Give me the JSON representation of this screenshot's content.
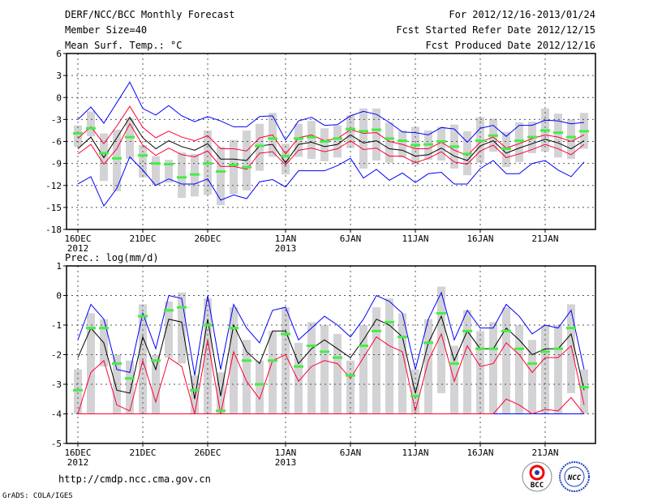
{
  "header": {
    "title": "DERF/NCC/BCC Monthly Forecast",
    "member_size": "Member Size=40",
    "period": "For 2012/12/16-2013/01/24",
    "fcst_started": "Fcst Started Refer Date 2012/12/15",
    "fcst_produced": "Fcst Produced Date 2012/12/16"
  },
  "footer": {
    "url": "http://cmdp.ncc.cma.gov.cn",
    "credit": "GrADS: COLA/IGES",
    "logo_bcc": "BCC",
    "logo_ncc": "NCC"
  },
  "colors": {
    "mean": "#000000",
    "red": "#ff0033",
    "blue": "#0000ff",
    "green": "#44ee44",
    "box": "#d3d3d6"
  },
  "chart_data": [
    {
      "type": "line",
      "title": "Mean Surf. Temp.: °C",
      "ylim": [
        -18,
        6
      ],
      "yticks": [
        "6",
        "3",
        "0",
        "-3",
        "-6",
        "-9",
        "-12",
        "-15",
        "-18"
      ],
      "ytick_values": [
        6,
        3,
        0,
        -3,
        -6,
        -9,
        -12,
        -15,
        -18
      ],
      "xtick_labels": [
        "16DEC",
        "21DEC",
        "26DEC",
        "1JAN",
        "6JAN",
        "11JAN",
        "16JAN",
        "21JAN"
      ],
      "xtick_sub": [
        "2012",
        "",
        "",
        "2013",
        "",
        "",
        "",
        ""
      ],
      "xtick_days": [
        0,
        5,
        10,
        16,
        21,
        26,
        31,
        36
      ],
      "days": 40,
      "grid": true,
      "series": [
        {
          "name": "mean",
          "color": "#000000",
          "values": [
            -7,
            -5.4,
            -8.2,
            -5.5,
            -2.7,
            -5.5,
            -7,
            -5.9,
            -6.7,
            -7.2,
            -6.3,
            -8.4,
            -8.4,
            -8.6,
            -6.6,
            -6.4,
            -8.9,
            -6.4,
            -6.1,
            -6.7,
            -6.4,
            -5.1,
            -6.2,
            -5.9,
            -7,
            -7.2,
            -8,
            -7.8,
            -6.9,
            -8,
            -8.6,
            -6.6,
            -5.9,
            -7.6,
            -6.9,
            -6.3,
            -5.7,
            -6.2,
            -7,
            -5.9
          ]
        },
        {
          "name": "red-upper",
          "color": "#ff0033",
          "values": [
            -5.6,
            -4,
            -6.3,
            -3.9,
            -1.2,
            -4.1,
            -5.5,
            -4.6,
            -5.4,
            -5.9,
            -5.2,
            -7,
            -7,
            -7.3,
            -5.5,
            -5.1,
            -7.7,
            -5.5,
            -5.1,
            -5.9,
            -5.6,
            -4.4,
            -4.9,
            -4.8,
            -6,
            -6.4,
            -7,
            -7,
            -6.1,
            -7.2,
            -7.9,
            -6.1,
            -5.4,
            -6.9,
            -6.3,
            -5.6,
            -5.1,
            -5.4,
            -6,
            -5.1
          ]
        },
        {
          "name": "red-lower",
          "color": "#ff0033",
          "values": [
            -7.7,
            -6.4,
            -9.1,
            -7,
            -3.6,
            -6.5,
            -7.9,
            -6.9,
            -7.8,
            -8.1,
            -7.3,
            -9.4,
            -9.4,
            -9.8,
            -7.6,
            -7.4,
            -9.2,
            -7.2,
            -6.9,
            -7.4,
            -7,
            -5.9,
            -7.1,
            -6.9,
            -8,
            -8,
            -8.9,
            -8.3,
            -7.4,
            -8.8,
            -9.1,
            -7.3,
            -6.5,
            -8.2,
            -7.7,
            -7.1,
            -6.4,
            -7,
            -7.8,
            -6.4
          ]
        },
        {
          "name": "blue-upper",
          "color": "#0000ff",
          "values": [
            -3,
            -1.3,
            -3.5,
            -0.7,
            2.1,
            -1.5,
            -2.4,
            -1.1,
            -2.5,
            -3.3,
            -2.6,
            -3.2,
            -4,
            -4,
            -2.6,
            -2.5,
            -5.8,
            -3.2,
            -2.7,
            -3.8,
            -3.7,
            -2.5,
            -1.9,
            -2.3,
            -3.4,
            -4.7,
            -4.8,
            -5.1,
            -4.1,
            -4.3,
            -6.1,
            -4.2,
            -3.8,
            -5.3,
            -3.8,
            -3.8,
            -3.1,
            -3.2,
            -3.6,
            -3.4
          ]
        },
        {
          "name": "blue-lower",
          "color": "#0000ff",
          "values": [
            -11.8,
            -10.8,
            -14.8,
            -12.4,
            -8.1,
            -9.9,
            -12,
            -11.1,
            -11.8,
            -11.8,
            -11.1,
            -14,
            -13.3,
            -13.8,
            -11.5,
            -11.2,
            -12.2,
            -10,
            -10,
            -10,
            -9.3,
            -8.3,
            -11,
            -9.8,
            -11.3,
            -10.3,
            -11.6,
            -10.4,
            -10.2,
            -11.8,
            -11.8,
            -9.7,
            -8.6,
            -10.4,
            -10.4,
            -9,
            -8.6,
            -9.9,
            -10.8,
            -8.8
          ]
        }
      ],
      "green_marks": [
        -4.9,
        -4.2,
        -7.6,
        -8.3,
        -5.4,
        -7.9,
        -9,
        -9.1,
        -10.9,
        -10.5,
        -9,
        -10.1,
        -9.2,
        -9.5,
        -6.6,
        -5.6,
        -8,
        -5.6,
        -5.4,
        -6,
        -5.6,
        -4.3,
        -4.6,
        -4.4,
        -5.6,
        -5.9,
        -6.5,
        -6.4,
        -6,
        -6.7,
        -7.7,
        -5.9,
        -5.2,
        -7,
        -5.9,
        -5.4,
        -4.5,
        -4.8,
        -5.4,
        -4.6
      ],
      "box_ranges": [
        [
          -6.7,
          -3.8
        ],
        [
          -5.3,
          -1.9
        ],
        [
          -11.4,
          -4.9
        ],
        [
          -12.8,
          -4.4
        ],
        [
          -8.4,
          -2.8
        ],
        [
          -10.9,
          -6.5
        ],
        [
          -12,
          -8
        ],
        [
          -11.6,
          -8.5
        ],
        [
          -13.7,
          -7.5
        ],
        [
          -13.5,
          -7.7
        ],
        [
          -13.3,
          -4.5
        ],
        [
          -14.7,
          -6.7
        ],
        [
          -13.2,
          -5.8
        ],
        [
          -12.7,
          -4.5
        ],
        [
          -10,
          -3.6
        ],
        [
          -8.1,
          -2.1
        ],
        [
          -10.5,
          -6.3
        ],
        [
          -8.1,
          -3.6
        ],
        [
          -8.4,
          -3.2
        ],
        [
          -8.7,
          -4.2
        ],
        [
          -8.2,
          -3.8
        ],
        [
          -6.9,
          -2.4
        ],
        [
          -9.7,
          -1.5
        ],
        [
          -8.6,
          -1.5
        ],
        [
          -8.9,
          -3.4
        ],
        [
          -8.2,
          -4.5
        ],
        [
          -9.2,
          -4
        ],
        [
          -8.5,
          -4.5
        ],
        [
          -8.6,
          -4
        ],
        [
          -9.7,
          -3.7
        ],
        [
          -10.6,
          -4.6
        ],
        [
          -8.9,
          -2.7
        ],
        [
          -7.4,
          -2.9
        ],
        [
          -9.5,
          -4.7
        ],
        [
          -8.8,
          -3.4
        ],
        [
          -7.6,
          -3.3
        ],
        [
          -7.4,
          -1.5
        ],
        [
          -8.2,
          -2.2
        ],
        [
          -8.4,
          -3
        ],
        [
          -7,
          -2.1
        ]
      ]
    },
    {
      "type": "line",
      "title": "Prec.: log(mm/d)",
      "ylim": [
        -5,
        1
      ],
      "yticks": [
        "1",
        "0",
        "-1",
        "-2",
        "-3",
        "-4",
        "-5"
      ],
      "ytick_values": [
        1,
        0,
        -1,
        -2,
        -3,
        -4,
        -5
      ],
      "xtick_labels": [
        "16DEC",
        "21DEC",
        "26DEC",
        "1JAN",
        "6JAN",
        "11JAN",
        "16JAN",
        "21JAN"
      ],
      "xtick_sub": [
        "2012",
        "",
        "",
        "2013",
        "",
        "",
        "",
        ""
      ],
      "xtick_days": [
        0,
        5,
        10,
        16,
        21,
        26,
        31,
        36
      ],
      "days": 40,
      "grid": true,
      "series": [
        {
          "name": "mean",
          "color": "#000000",
          "values": [
            -2.1,
            -1.1,
            -1.6,
            -3.2,
            -3.3,
            -1.4,
            -2.5,
            -0.8,
            -0.9,
            -3.5,
            -0.8,
            -3.4,
            -1,
            -1.9,
            -2.3,
            -1.2,
            -1.2,
            -2.3,
            -1.8,
            -1.5,
            -1.8,
            -2.1,
            -1.5,
            -0.8,
            -1,
            -1.4,
            -3.3,
            -1.6,
            -0.7,
            -2.2,
            -1.2,
            -1.8,
            -1.8,
            -1.1,
            -1.5,
            -2,
            -1.8,
            -1.8,
            -1.3,
            -3.2
          ]
        },
        {
          "name": "blue-upper",
          "color": "#0000ff",
          "values": [
            -1.5,
            -0.3,
            -0.8,
            -2.5,
            -2.6,
            -0.6,
            -1.8,
            0,
            -0.1,
            -2.7,
            0,
            -2.5,
            -0.3,
            -1.1,
            -1.6,
            -0.5,
            -0.4,
            -1.5,
            -1.1,
            -0.7,
            -1,
            -1.4,
            -0.8,
            0,
            -0.2,
            -0.6,
            -2.5,
            -0.8,
            0.1,
            -1.5,
            -0.5,
            -1.1,
            -1.1,
            -0.3,
            -0.7,
            -1.3,
            -1,
            -1.1,
            -0.5,
            -2.5
          ]
        },
        {
          "name": "red-upper",
          "color": "#ff0033",
          "values": [
            -4,
            -2.6,
            -2.2,
            -3.7,
            -3.9,
            -2.2,
            -3.6,
            -2.1,
            -2.4,
            -4,
            -1.5,
            -4,
            -1.9,
            -2.9,
            -3.5,
            -2.2,
            -2,
            -2.9,
            -2.4,
            -2.2,
            -2.3,
            -2.8,
            -2.1,
            -1.4,
            -1.7,
            -1.9,
            -3.9,
            -2.2,
            -1.3,
            -2.9,
            -1.7,
            -2.4,
            -2.3,
            -1.6,
            -2,
            -2.6,
            -2.1,
            -2.1,
            -1.7,
            -3.7
          ]
        },
        {
          "name": "blue-lower",
          "color": "#0000ff",
          "values": [
            -4,
            -4,
            -4,
            -4,
            -4,
            -4,
            -4,
            -4,
            -4,
            -4,
            -4,
            -4,
            -4,
            -4,
            -4,
            -4,
            -4,
            -4,
            -4,
            -4,
            -4,
            -4,
            -4,
            -4,
            -4,
            -4,
            -4,
            -4,
            -4,
            -4,
            -4,
            -4,
            -4,
            -4,
            -4,
            -4,
            -4,
            -4,
            -4,
            -4
          ]
        },
        {
          "name": "red-lower",
          "color": "#ff0033",
          "values": [
            -4,
            -4,
            -4,
            -4,
            -4,
            -4,
            -4,
            -4,
            -4,
            -4,
            -4,
            -4,
            -4,
            -4,
            -4,
            -4,
            -4,
            -4,
            -4,
            -4,
            -4,
            -4,
            -4,
            -4,
            -4,
            -4,
            -4,
            -4,
            -4,
            -4,
            -4,
            -4,
            -4,
            -3.5,
            -3.7,
            -4,
            -3.85,
            -3.9,
            -3.45,
            -4
          ]
        }
      ],
      "green_marks": [
        -3.2,
        -1.1,
        -1.1,
        -2.3,
        -2.8,
        -0.7,
        -2.2,
        -0.5,
        -0.4,
        -3.2,
        -1,
        -3.9,
        -1.1,
        -2.2,
        -3,
        -2.2,
        -1.3,
        -2.4,
        -1.7,
        -1.9,
        -2.1,
        -2.7,
        -1.7,
        -1.2,
        -0.9,
        -1.4,
        -3.4,
        -1.6,
        -0.6,
        -2.3,
        -1.2,
        -1.8,
        -1.8,
        -1.2,
        -1.8,
        -2.3,
        -1.9,
        -1.8,
        -1.1,
        -3.1
      ],
      "box_ranges": [
        [
          -4,
          -2.5
        ],
        [
          -4,
          -0.6
        ],
        [
          -2.4,
          -0.8
        ],
        [
          -4,
          -2
        ],
        [
          -4,
          -2.2
        ],
        [
          -4,
          -0.3
        ],
        [
          -4,
          -2
        ],
        [
          -2.1,
          -0.2
        ],
        [
          -2.3,
          0.1
        ],
        [
          -4,
          -2.7
        ],
        [
          -4,
          -0.1
        ],
        [
          -4,
          -2.6
        ],
        [
          -4,
          -0.4
        ],
        [
          -4,
          -1.5
        ],
        [
          -4,
          -2.2
        ],
        [
          -4,
          -1.2
        ],
        [
          -4,
          -0.4
        ],
        [
          -4,
          -1.6
        ],
        [
          -4,
          -0.9
        ],
        [
          -4,
          -1
        ],
        [
          -4,
          -1.3
        ],
        [
          -4,
          -2.2
        ],
        [
          -4,
          -1
        ],
        [
          -4,
          -0.4
        ],
        [
          -4,
          -0.1
        ],
        [
          -4,
          -0.6
        ],
        [
          -4,
          -2.5
        ],
        [
          -4,
          -0.8
        ],
        [
          -3.3,
          0.3
        ],
        [
          -4,
          -1.7
        ],
        [
          -4,
          -0.5
        ],
        [
          -4,
          -1.2
        ],
        [
          -4,
          -0.9
        ],
        [
          -4,
          -0.4
        ],
        [
          -4,
          -1
        ],
        [
          -4,
          -1.5
        ],
        [
          -4,
          -1
        ],
        [
          -4,
          -1
        ],
        [
          -3.3,
          -0.3
        ],
        [
          -4,
          -2.5
        ]
      ]
    }
  ]
}
